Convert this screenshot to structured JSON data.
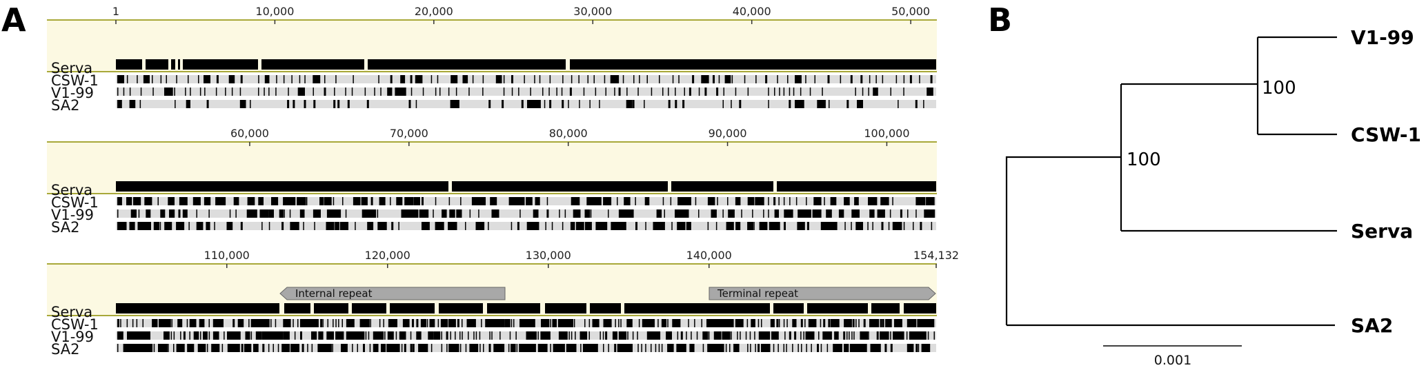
{
  "panel_a": {
    "label": "A",
    "genome_length": 154132,
    "rows": [
      {
        "ticks": [
          "1",
          "10,000",
          "20,000",
          "30,000",
          "40,000",
          "50,000"
        ]
      },
      {
        "ticks": [
          "60,000",
          "70,000",
          "80,000",
          "90,000",
          "100,000"
        ]
      },
      {
        "ticks": [
          "110,000",
          "120,000",
          "130,000",
          "140,000",
          "154,132"
        ]
      }
    ],
    "tracks": [
      "Serva",
      "CSW-1",
      "V1-99",
      "SA2"
    ],
    "annotations": [
      {
        "label": "Internal repeat"
      },
      {
        "label": "Terminal repeat"
      }
    ],
    "colors": {
      "band": "#fcf9e2",
      "olive": "#a8a838",
      "consensus": "#000000",
      "track_bg": "#dddddd",
      "variant": "#000000",
      "annotation": "#a8a8a8"
    }
  },
  "panel_b": {
    "label": "B",
    "taxa": [
      "V1-99",
      "CSW-1",
      "Serva",
      "SA2"
    ],
    "bootstrap": [
      "100",
      "100"
    ],
    "scale_label": "0.001"
  }
}
